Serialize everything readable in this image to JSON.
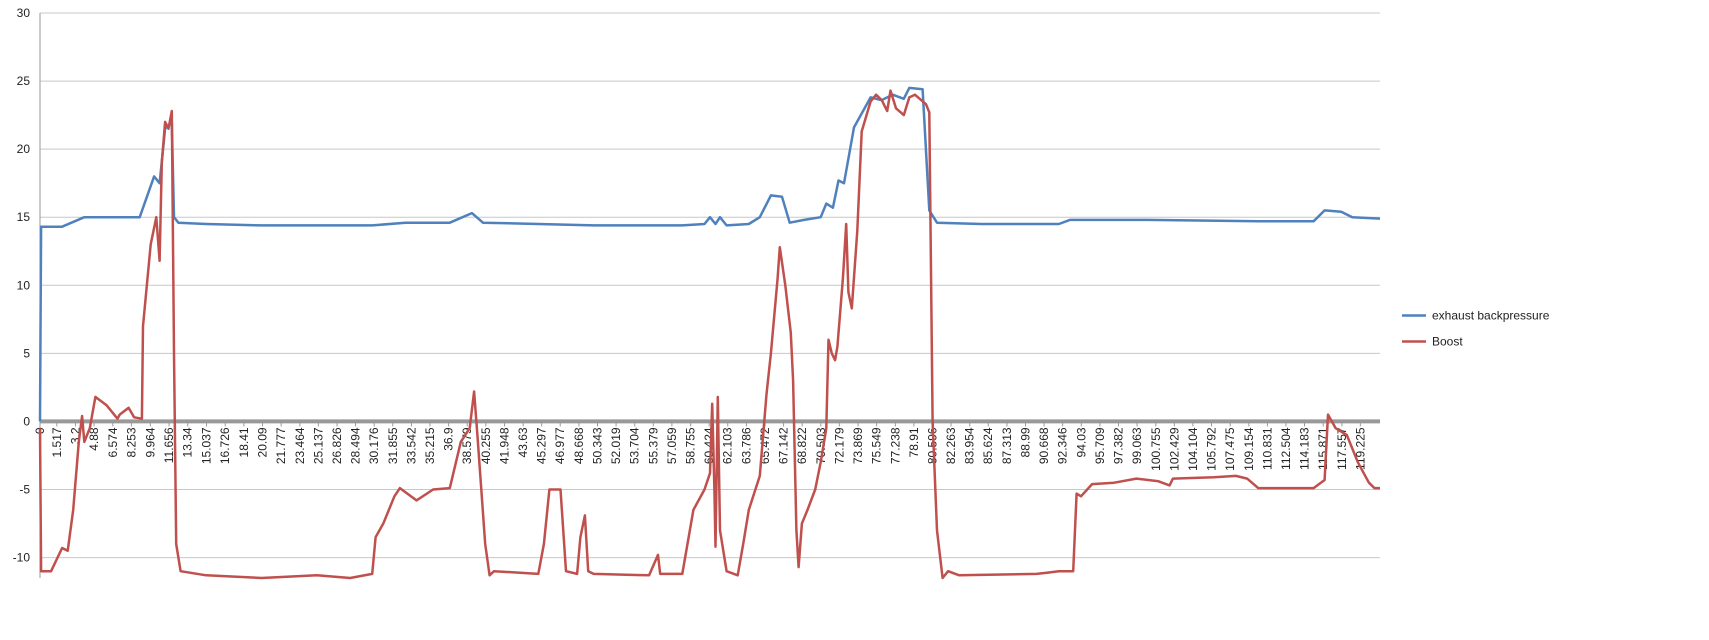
{
  "chart_data": {
    "type": "line",
    "ylim": [
      -11.5,
      30
    ],
    "yticks": [
      -10,
      -5,
      0,
      5,
      10,
      15,
      20,
      25,
      30
    ],
    "grid": true,
    "xlim": [
      0,
      121
    ],
    "xticks": [
      0,
      1.517,
      3.2,
      4.88,
      6.574,
      8.253,
      9.964,
      11.656,
      13.34,
      15.037,
      16.726,
      18.41,
      20.09,
      21.777,
      23.464,
      25.137,
      26.826,
      28.494,
      30.176,
      31.855,
      33.542,
      35.215,
      36.9,
      38.579,
      40.255,
      41.948,
      43.63,
      45.297,
      46.977,
      48.668,
      50.343,
      52.019,
      53.704,
      55.379,
      57.059,
      58.755,
      60.424,
      62.103,
      63.786,
      65.472,
      67.142,
      68.822,
      70.503,
      72.179,
      73.869,
      75.549,
      77.238,
      78.91,
      80.596,
      82.263,
      83.954,
      85.624,
      87.313,
      88.99,
      90.668,
      92.346,
      94.03,
      95.709,
      97.382,
      99.063,
      100.755,
      102.429,
      104.104,
      105.792,
      107.475,
      109.154,
      110.831,
      112.504,
      114.183,
      115.871,
      117.557,
      119.225
    ],
    "legend": "right",
    "series": [
      {
        "name": "exhaust backpressure",
        "color": "#4f81bd",
        "x": [
          0,
          0.1,
          2,
          4,
          9,
          10.3,
          10.8,
          11.3,
          11.9,
          12.1,
          12.5,
          15,
          20,
          30,
          33,
          37,
          39,
          40,
          45,
          50,
          58,
          60,
          60.5,
          61,
          61.4,
          62,
          64,
          65,
          66,
          67,
          67.7,
          69,
          70.5,
          71,
          71.6,
          72.1,
          72.6,
          73.5,
          75,
          76,
          77,
          78,
          78.5,
          79.7,
          80.3,
          81,
          85,
          92,
          93,
          100,
          110,
          115,
          116,
          117.5,
          118.5,
          121
        ],
        "values": [
          0,
          14.3,
          14.3,
          15,
          15,
          18,
          17.5,
          21.5,
          22,
          15,
          14.6,
          14.5,
          14.4,
          14.4,
          14.6,
          14.6,
          15.3,
          14.6,
          14.5,
          14.4,
          14.4,
          14.5,
          15,
          14.5,
          15,
          14.4,
          14.5,
          15,
          16.6,
          16.5,
          14.6,
          14.8,
          15,
          16,
          15.7,
          17.7,
          17.5,
          21.6,
          23.8,
          23.6,
          24,
          23.7,
          24.5,
          24.4,
          15.5,
          14.6,
          14.5,
          14.5,
          14.8,
          14.8,
          14.7,
          14.7,
          15.5,
          15.4,
          15,
          14.9
        ]
      },
      {
        "name": "Boost",
        "color": "#c0504d",
        "x": [
          0,
          0.1,
          1,
          2,
          2.5,
          3,
          3.5,
          3.8,
          4,
          4.5,
          5,
          6,
          7,
          7.2,
          8,
          8.5,
          9.2,
          9.3,
          10,
          10.5,
          10.8,
          11,
          11.3,
          11.6,
          11.9,
          12.1,
          12.3,
          12.7,
          15,
          20,
          25,
          28,
          30,
          30.3,
          31,
          32,
          32.5,
          34,
          35.5,
          37,
          38,
          38.8,
          39.2,
          39.5,
          40.2,
          40.6,
          41,
          45,
          45.5,
          46,
          47,
          47.5,
          48.5,
          48.8,
          49.2,
          49.5,
          50,
          55,
          55.8,
          56,
          58,
          59,
          60,
          60.5,
          60.7,
          60.9,
          61,
          61.2,
          61.4,
          62,
          63,
          63.5,
          64,
          65,
          65.6,
          66,
          66.6,
          66.8,
          67.3,
          67.8,
          68,
          68.3,
          68.5,
          68.8,
          69.3,
          70,
          70.5,
          71,
          71.2,
          71.5,
          71.8,
          72,
          72.5,
          72.8,
          73,
          73.3,
          73.8,
          74.2,
          75,
          75.5,
          76,
          76.5,
          76.8,
          77.3,
          78,
          78.5,
          79,
          80,
          80.3,
          80.6,
          81,
          81.5,
          82,
          83,
          90,
          91,
          92,
          93.3,
          93.6,
          94,
          95,
          97,
          99,
          101,
          102,
          102.3,
          106,
          108,
          109,
          110,
          115,
          116,
          116.3,
          117,
          118,
          119,
          120,
          120.5,
          121
        ],
        "values": [
          -0.5,
          -11,
          -11,
          -9.3,
          -9.5,
          -6.5,
          -1.5,
          0.4,
          -1.5,
          -0.5,
          1.8,
          1.2,
          0.2,
          0.5,
          1,
          0.3,
          0.2,
          7,
          13,
          15,
          11.8,
          19,
          22,
          21.5,
          22.8,
          5,
          -9,
          -11,
          -11.3,
          -11.5,
          -11.3,
          -11.5,
          -11.2,
          -8.5,
          -7.5,
          -5.5,
          -4.9,
          -5.8,
          -5,
          -4.9,
          -1.5,
          -0.5,
          2.2,
          -1,
          -9,
          -11.3,
          -11,
          -11.2,
          -9,
          -5,
          -5,
          -11,
          -11.2,
          -8.5,
          -6.9,
          -11,
          -11.2,
          -11.3,
          -9.8,
          -11.2,
          -11.2,
          -6.5,
          -5,
          -3.8,
          1.3,
          -5,
          -9.2,
          1.8,
          -8,
          -11,
          -11.3,
          -9,
          -6.5,
          -4,
          2,
          5,
          10.5,
          12.8,
          10,
          6.5,
          3,
          -8,
          -10.7,
          -7.5,
          -6.5,
          -5,
          -3,
          -0.5,
          6,
          5,
          4.5,
          5.5,
          10.5,
          14.5,
          9.5,
          8.3,
          14,
          21.3,
          23.5,
          24,
          23.6,
          22.8,
          24.3,
          23,
          22.5,
          23.8,
          24,
          23.3,
          22.7,
          0,
          -8,
          -11.5,
          -11,
          -11.3,
          -11.2,
          -11.1,
          -11,
          -11,
          -5.3,
          -5.5,
          -4.6,
          -4.5,
          -4.2,
          -4.4,
          -4.7,
          -4.2,
          -4.1,
          -4,
          -4.2,
          -4.9,
          -4.9,
          -4.3,
          0.5,
          -0.5,
          -1,
          -3,
          -4.5,
          -4.9,
          -4.9
        ]
      }
    ]
  }
}
